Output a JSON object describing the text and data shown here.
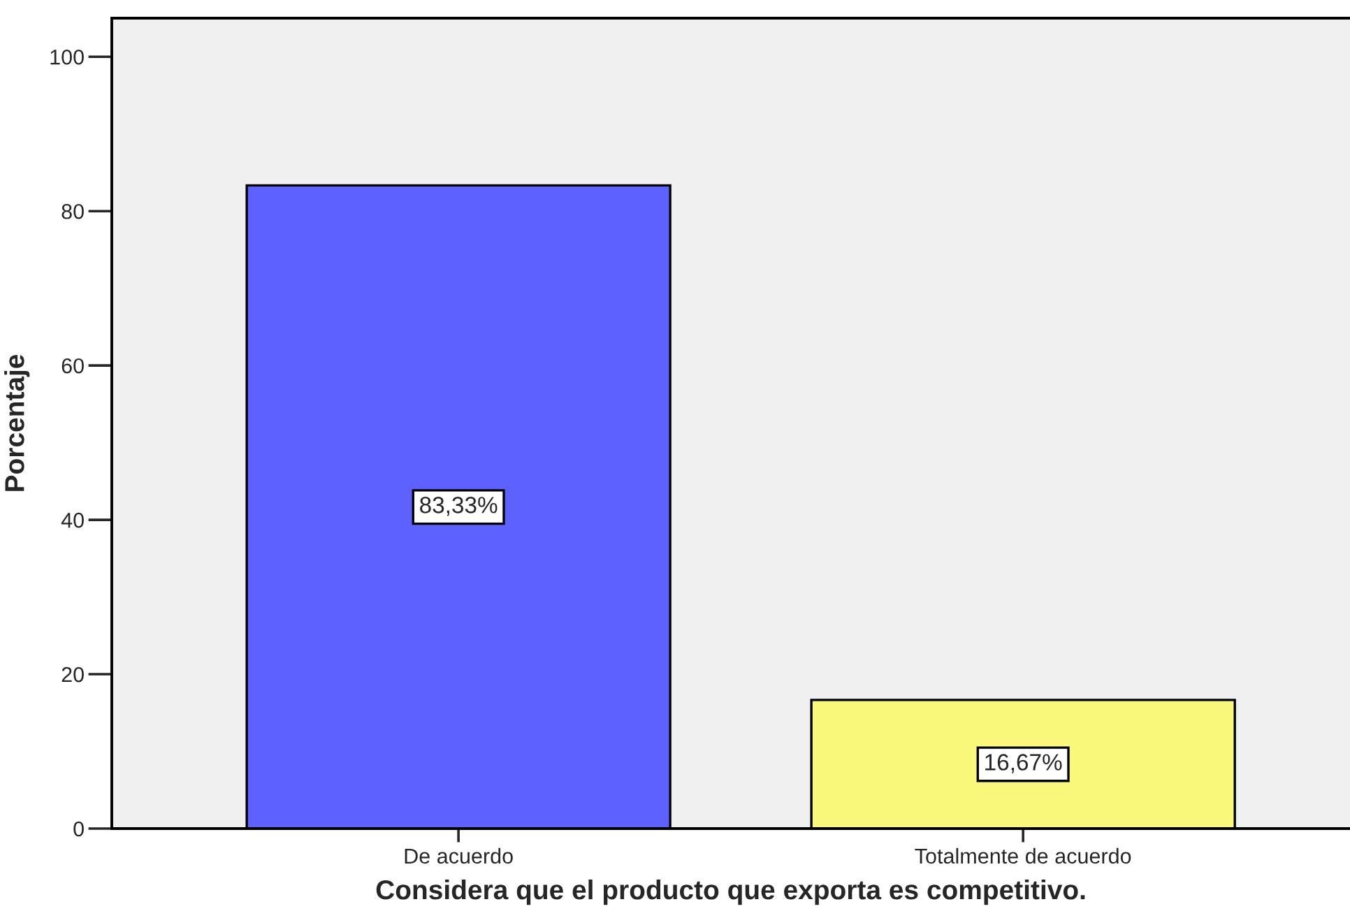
{
  "chart_data": {
    "type": "bar",
    "xlabel": "Considera que el producto que exporta es competitivo.",
    "ylabel": "Porcentaje",
    "categories": [
      "De acuerdo",
      "Totalmente de acuerdo"
    ],
    "values": [
      83.33,
      16.67
    ],
    "colors": [
      "#5c61ff",
      "#f9f87b"
    ],
    "value_labels": [
      "83,33%",
      "16,67%"
    ],
    "ylim": [
      0,
      105
    ],
    "yticks": [
      0,
      20,
      40,
      60,
      80,
      100
    ]
  }
}
